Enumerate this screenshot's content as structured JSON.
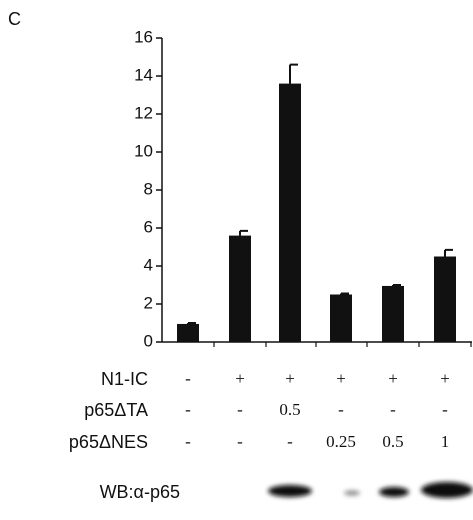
{
  "panel_label": "C",
  "chart_data": {
    "type": "bar",
    "categories": [
      null,
      null,
      null,
      null,
      null,
      null
    ],
    "values": [
      0.95,
      5.6,
      13.6,
      2.5,
      2.95,
      4.5
    ],
    "errors": [
      0.05,
      0.25,
      1.0,
      0.05,
      0.05,
      0.35
    ],
    "color": "#111111",
    "ylim": [
      0,
      16
    ],
    "yticks": [
      0,
      2,
      4,
      6,
      8,
      10,
      12,
      14,
      16
    ]
  },
  "conditions": {
    "rows": [
      {
        "label": "N1-IC",
        "values": [
          "-",
          "+",
          "+",
          "+",
          "+",
          "+"
        ]
      },
      {
        "label": "p65ΔTA",
        "values": [
          "-",
          "-",
          "0.5",
          "-",
          "-",
          "-"
        ]
      },
      {
        "label": "p65ΔNES",
        "values": [
          "-",
          "-",
          "-",
          "0.25",
          "0.5",
          "1"
        ]
      }
    ]
  },
  "blot_label": "WB:α-p65"
}
